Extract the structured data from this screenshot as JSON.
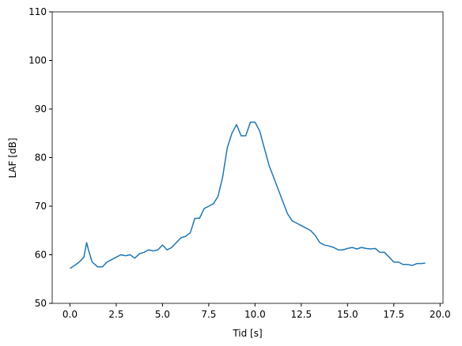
{
  "chart_data": {
    "type": "line",
    "x_label": "Tid [s]",
    "y_label": "LAF [dB]",
    "x": [
      0,
      0.25,
      0.5,
      0.75,
      0.9,
      1.0,
      1.2,
      1.5,
      1.75,
      2.0,
      2.25,
      2.5,
      2.75,
      3.0,
      3.25,
      3.5,
      3.75,
      4.0,
      4.25,
      4.5,
      4.75,
      5.0,
      5.25,
      5.5,
      5.75,
      6.0,
      6.25,
      6.5,
      6.75,
      7.0,
      7.25,
      7.5,
      7.75,
      8.0,
      8.25,
      8.5,
      8.75,
      9.0,
      9.25,
      9.5,
      9.75,
      10.0,
      10.25,
      10.5,
      10.75,
      11.0,
      11.25,
      11.5,
      11.75,
      12.0,
      12.25,
      12.5,
      12.75,
      13.0,
      13.25,
      13.5,
      13.75,
      14.0,
      14.25,
      14.5,
      14.75,
      15.0,
      15.25,
      15.5,
      15.75,
      16.0,
      16.25,
      16.5,
      16.75,
      17.0,
      17.25,
      17.5,
      17.75,
      18.0,
      18.25,
      18.5,
      18.75,
      19.0,
      19.2
    ],
    "series": [
      {
        "name": "LAF",
        "color": "#1f77b4",
        "values": [
          57.2,
          57.8,
          58.5,
          59.5,
          62.5,
          61,
          58.5,
          57.5,
          57.5,
          58.5,
          59,
          59.5,
          60,
          59.8,
          60,
          59.3,
          60.2,
          60.5,
          61,
          60.8,
          61,
          62,
          61,
          61.5,
          62.5,
          63.5,
          63.8,
          64.5,
          67.5,
          67.5,
          69.5,
          70,
          70.5,
          72,
          76,
          82,
          85,
          86.8,
          84.5,
          84.5,
          87.3,
          87.3,
          85.5,
          82,
          78.5,
          76,
          73.5,
          71,
          68.5,
          67,
          66.5,
          66,
          65.5,
          65,
          64,
          62.5,
          62,
          61.8,
          61.5,
          61,
          61,
          61.3,
          61.5,
          61.2,
          61.5,
          61.3,
          61.2,
          61.3,
          60.5,
          60.5,
          59.5,
          58.5,
          58.5,
          58,
          58,
          57.8,
          58.2,
          58.2,
          58.3
        ]
      }
    ],
    "xlim": [
      -0.96,
      20.16
    ],
    "xticks": [
      {
        "value": 0,
        "label": "0.0"
      },
      {
        "value": 2.5,
        "label": "2.5"
      },
      {
        "value": 5,
        "label": "5.0"
      },
      {
        "value": 7.5,
        "label": "7.5"
      },
      {
        "value": 10,
        "label": "10.0"
      },
      {
        "value": 12.5,
        "label": "12.5"
      },
      {
        "value": 15,
        "label": "15.0"
      },
      {
        "value": 17.5,
        "label": "17.5"
      },
      {
        "value": 20,
        "label": "20.0"
      }
    ],
    "ylim": [
      50,
      110
    ],
    "yticks": [
      50,
      60,
      70,
      80,
      90,
      100,
      110
    ],
    "grid": false
  }
}
